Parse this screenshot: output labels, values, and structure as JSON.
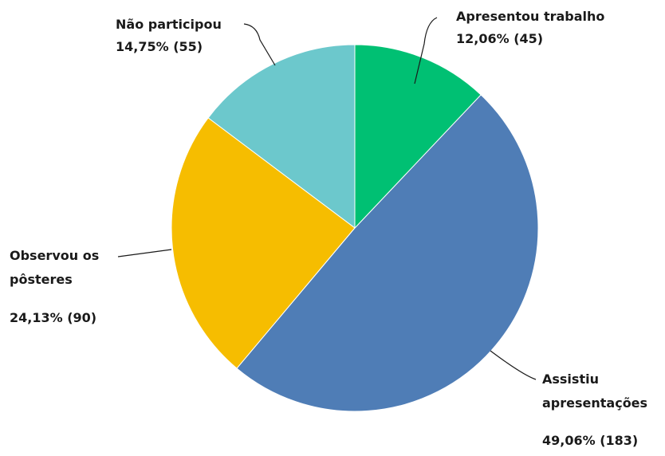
{
  "chart_data": {
    "type": "pie",
    "categories": [
      "Apresentou trabalho",
      "Assistiu apresentações",
      "Observou os pôsteres",
      "Não participou"
    ],
    "values": [
      12.06,
      49.06,
      24.13,
      14.75
    ],
    "value_labels": [
      "12,06% (45)",
      "49,06% (183)",
      "24,13% (90)",
      "14,75% (55)"
    ],
    "colors": [
      "#00c073",
      "#4f7db6",
      "#f6bd00",
      "#6cc8cc"
    ]
  }
}
